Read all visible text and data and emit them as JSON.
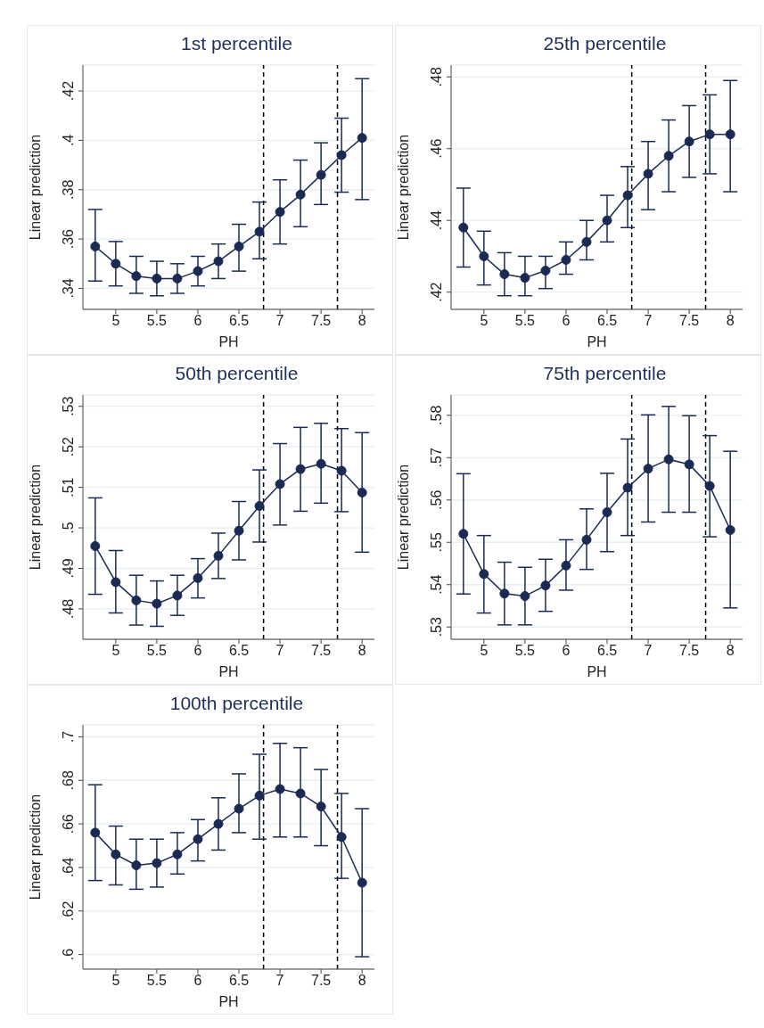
{
  "chart_data": [
    {
      "type": "line",
      "title": "1st percentile",
      "xlabel": "PH",
      "ylabel": "Linear prediction",
      "x": [
        4.75,
        5,
        5.25,
        5.5,
        5.75,
        6,
        6.25,
        6.5,
        6.75,
        7,
        7.25,
        7.5,
        7.75,
        8
      ],
      "series": [
        {
          "color": "#1a2a52",
          "values": [
            0.357,
            0.35,
            0.345,
            0.344,
            0.344,
            0.347,
            0.351,
            0.357,
            0.363,
            0.371,
            0.378,
            0.386,
            0.394,
            0.401
          ],
          "errors": [
            [
              0.343,
              0.372
            ],
            [
              0.341,
              0.359
            ],
            [
              0.338,
              0.353
            ],
            [
              0.337,
              0.351
            ],
            [
              0.338,
              0.35
            ],
            [
              0.341,
              0.353
            ],
            [
              0.344,
              0.358
            ],
            [
              0.347,
              0.366
            ],
            [
              0.352,
              0.375
            ],
            [
              0.358,
              0.384
            ],
            [
              0.365,
              0.392
            ],
            [
              0.374,
              0.399
            ],
            [
              0.379,
              0.409
            ],
            [
              0.376,
              0.425
            ]
          ]
        }
      ],
      "xlim": [
        4.6,
        8.15
      ],
      "xticks": [
        5,
        5.5,
        6,
        6.5,
        7,
        7.5,
        8
      ],
      "ylim": [
        0.3315,
        0.4305
      ],
      "yticks": [
        {
          "value": 0.34,
          "label": ".34"
        },
        {
          "value": 0.36,
          "label": ".36"
        },
        {
          "value": 0.38,
          "label": ".38"
        },
        {
          "value": 0.4,
          "label": ".4"
        },
        {
          "value": 0.42,
          "label": ".42"
        }
      ],
      "grid": "y",
      "marker": "circle",
      "line_style": "solid",
      "ref_lines": [
        {
          "axis": "x",
          "value": 6.8,
          "color": "#000000",
          "line_style": "dashed"
        },
        {
          "axis": "x",
          "value": 7.7,
          "color": "#000000",
          "line_style": "dashed"
        }
      ]
    },
    {
      "type": "line",
      "title": "25th percentile",
      "xlabel": "PH",
      "ylabel": "Linear prediction",
      "x": [
        4.75,
        5,
        5.25,
        5.5,
        5.75,
        6,
        6.25,
        6.5,
        6.75,
        7,
        7.25,
        7.5,
        7.75,
        8
      ],
      "series": [
        {
          "color": "#1a2a52",
          "values": [
            0.438,
            0.43,
            0.425,
            0.424,
            0.426,
            0.429,
            0.434,
            0.44,
            0.447,
            0.453,
            0.458,
            0.462,
            0.464,
            0.464
          ],
          "errors": [
            [
              0.427,
              0.449
            ],
            [
              0.422,
              0.437
            ],
            [
              0.419,
              0.431
            ],
            [
              0.419,
              0.43
            ],
            [
              0.421,
              0.43
            ],
            [
              0.425,
              0.434
            ],
            [
              0.429,
              0.44
            ],
            [
              0.434,
              0.447
            ],
            [
              0.438,
              0.455
            ],
            [
              0.443,
              0.462
            ],
            [
              0.448,
              0.468
            ],
            [
              0.452,
              0.472
            ],
            [
              0.453,
              0.475
            ],
            [
              0.448,
              0.479
            ]
          ]
        }
      ],
      "xlim": [
        4.6,
        8.15
      ],
      "xticks": [
        5,
        5.5,
        6,
        6.5,
        7,
        7.5,
        8
      ],
      "ylim": [
        0.4152,
        0.4833
      ],
      "yticks": [
        {
          "value": 0.42,
          "label": ".42"
        },
        {
          "value": 0.44,
          "label": ".44"
        },
        {
          "value": 0.46,
          "label": ".46"
        },
        {
          "value": 0.48,
          "label": ".48"
        }
      ],
      "grid": "y",
      "marker": "circle",
      "line_style": "solid",
      "ref_lines": [
        {
          "axis": "x",
          "value": 6.8,
          "color": "#000000",
          "line_style": "dashed"
        },
        {
          "axis": "x",
          "value": 7.7,
          "color": "#000000",
          "line_style": "dashed"
        }
      ]
    },
    {
      "type": "line",
      "title": "50th percentile",
      "xlabel": "PH",
      "ylabel": "Linear prediction",
      "x": [
        4.75,
        5,
        5.25,
        5.5,
        5.75,
        6,
        6.25,
        6.5,
        6.75,
        7,
        7.25,
        7.5,
        7.75,
        8
      ],
      "series": [
        {
          "color": "#1a2a52",
          "values": [
            0.4955,
            0.4866,
            0.4821,
            0.4813,
            0.4833,
            0.4876,
            0.4931,
            0.4993,
            0.5054,
            0.5108,
            0.5145,
            0.5158,
            0.5141,
            0.5087
          ],
          "errors": [
            [
              0.4836,
              0.5074
            ],
            [
              0.479,
              0.4944
            ],
            [
              0.476,
              0.4883
            ],
            [
              0.4757,
              0.4869
            ],
            [
              0.4784,
              0.4883
            ],
            [
              0.4827,
              0.4924
            ],
            [
              0.4875,
              0.4987
            ],
            [
              0.4921,
              0.5065
            ],
            [
              0.4965,
              0.5143
            ],
            [
              0.5007,
              0.5208
            ],
            [
              0.5041,
              0.5248
            ],
            [
              0.5061,
              0.5258
            ],
            [
              0.504,
              0.5245
            ],
            [
              0.494,
              0.5235
            ]
          ]
        }
      ],
      "xlim": [
        4.6,
        8.15
      ],
      "xticks": [
        5,
        5.5,
        6,
        6.5,
        7,
        7.5,
        8
      ],
      "ylim": [
        0.4725,
        0.5328
      ],
      "yticks": [
        {
          "value": 0.48,
          "label": ".48"
        },
        {
          "value": 0.49,
          "label": ".49"
        },
        {
          "value": 0.5,
          "label": ".5"
        },
        {
          "value": 0.51,
          "label": ".51"
        },
        {
          "value": 0.52,
          "label": ".52"
        },
        {
          "value": 0.53,
          "label": ".53"
        }
      ],
      "grid": "y",
      "marker": "circle",
      "line_style": "solid",
      "ref_lines": [
        {
          "axis": "x",
          "value": 6.8,
          "color": "#000000",
          "line_style": "dashed"
        },
        {
          "axis": "x",
          "value": 7.7,
          "color": "#000000",
          "line_style": "dashed"
        }
      ]
    },
    {
      "type": "line",
      "title": "75th percentile",
      "xlabel": "PH",
      "ylabel": "Linear prediction",
      "x": [
        4.75,
        5,
        5.25,
        5.5,
        5.75,
        6,
        6.25,
        6.5,
        6.75,
        7,
        7.25,
        7.5,
        7.75,
        8
      ],
      "series": [
        {
          "color": "#1a2a52",
          "values": [
            0.552,
            0.5425,
            0.5379,
            0.5373,
            0.5398,
            0.5445,
            0.5506,
            0.5571,
            0.5629,
            0.5674,
            0.5696,
            0.5684,
            0.5633,
            0.5529
          ],
          "errors": [
            [
              0.5378,
              0.5662
            ],
            [
              0.5333,
              0.5516
            ],
            [
              0.5305,
              0.5453
            ],
            [
              0.5305,
              0.5441
            ],
            [
              0.5337,
              0.546
            ],
            [
              0.5387,
              0.5506
            ],
            [
              0.5436,
              0.5579
            ],
            [
              0.5478,
              0.5663
            ],
            [
              0.5516,
              0.5744
            ],
            [
              0.5548,
              0.5801
            ],
            [
              0.5571,
              0.5821
            ],
            [
              0.5571,
              0.5799
            ],
            [
              0.5513,
              0.5752
            ],
            [
              0.5345,
              0.5715
            ]
          ]
        }
      ],
      "xlim": [
        4.6,
        8.15
      ],
      "xticks": [
        5,
        5.5,
        6,
        6.5,
        7,
        7.5,
        8
      ],
      "ylim": [
        0.5271,
        0.5848
      ],
      "yticks": [
        {
          "value": 0.53,
          "label": ".53"
        },
        {
          "value": 0.54,
          "label": ".54"
        },
        {
          "value": 0.55,
          "label": ".55"
        },
        {
          "value": 0.56,
          "label": ".56"
        },
        {
          "value": 0.57,
          "label": ".57"
        },
        {
          "value": 0.58,
          "label": ".58"
        }
      ],
      "grid": "y",
      "marker": "circle",
      "line_style": "solid",
      "ref_lines": [
        {
          "axis": "x",
          "value": 6.8,
          "color": "#000000",
          "line_style": "dashed"
        },
        {
          "axis": "x",
          "value": 7.7,
          "color": "#000000",
          "line_style": "dashed"
        }
      ]
    },
    {
      "type": "line",
      "title": "100th percentile",
      "xlabel": "PH",
      "ylabel": "Linear prediction",
      "x": [
        4.75,
        5,
        5.25,
        5.5,
        5.75,
        6,
        6.25,
        6.5,
        6.75,
        7,
        7.25,
        7.5,
        7.75,
        8
      ],
      "series": [
        {
          "color": "#1a2a52",
          "values": [
            0.656,
            0.646,
            0.641,
            0.642,
            0.646,
            0.653,
            0.66,
            0.667,
            0.673,
            0.676,
            0.674,
            0.668,
            0.654,
            0.633
          ],
          "errors": [
            [
              0.634,
              0.678
            ],
            [
              0.632,
              0.659
            ],
            [
              0.63,
              0.653
            ],
            [
              0.631,
              0.653
            ],
            [
              0.637,
              0.656
            ],
            [
              0.643,
              0.662
            ],
            [
              0.648,
              0.672
            ],
            [
              0.656,
              0.683
            ],
            [
              0.653,
              0.692
            ],
            [
              0.654,
              0.697
            ],
            [
              0.654,
              0.695
            ],
            [
              0.65,
              0.685
            ],
            [
              0.635,
              0.674
            ],
            [
              0.599,
              0.667
            ]
          ]
        }
      ],
      "xlim": [
        4.6,
        8.15
      ],
      "xticks": [
        5,
        5.5,
        6,
        6.5,
        7,
        7.5,
        8
      ],
      "ylim": [
        0.5933,
        0.7055
      ],
      "yticks": [
        {
          "value": 0.6,
          "label": ".6"
        },
        {
          "value": 0.62,
          "label": ".62"
        },
        {
          "value": 0.64,
          "label": ".64"
        },
        {
          "value": 0.66,
          "label": ".66"
        },
        {
          "value": 0.68,
          "label": ".68"
        },
        {
          "value": 0.7,
          "label": ".7"
        }
      ],
      "grid": "y",
      "marker": "circle",
      "line_style": "solid",
      "ref_lines": [
        {
          "axis": "x",
          "value": 6.8,
          "color": "#000000",
          "line_style": "dashed"
        },
        {
          "axis": "x",
          "value": 7.7,
          "color": "#000000",
          "line_style": "dashed"
        }
      ]
    }
  ]
}
